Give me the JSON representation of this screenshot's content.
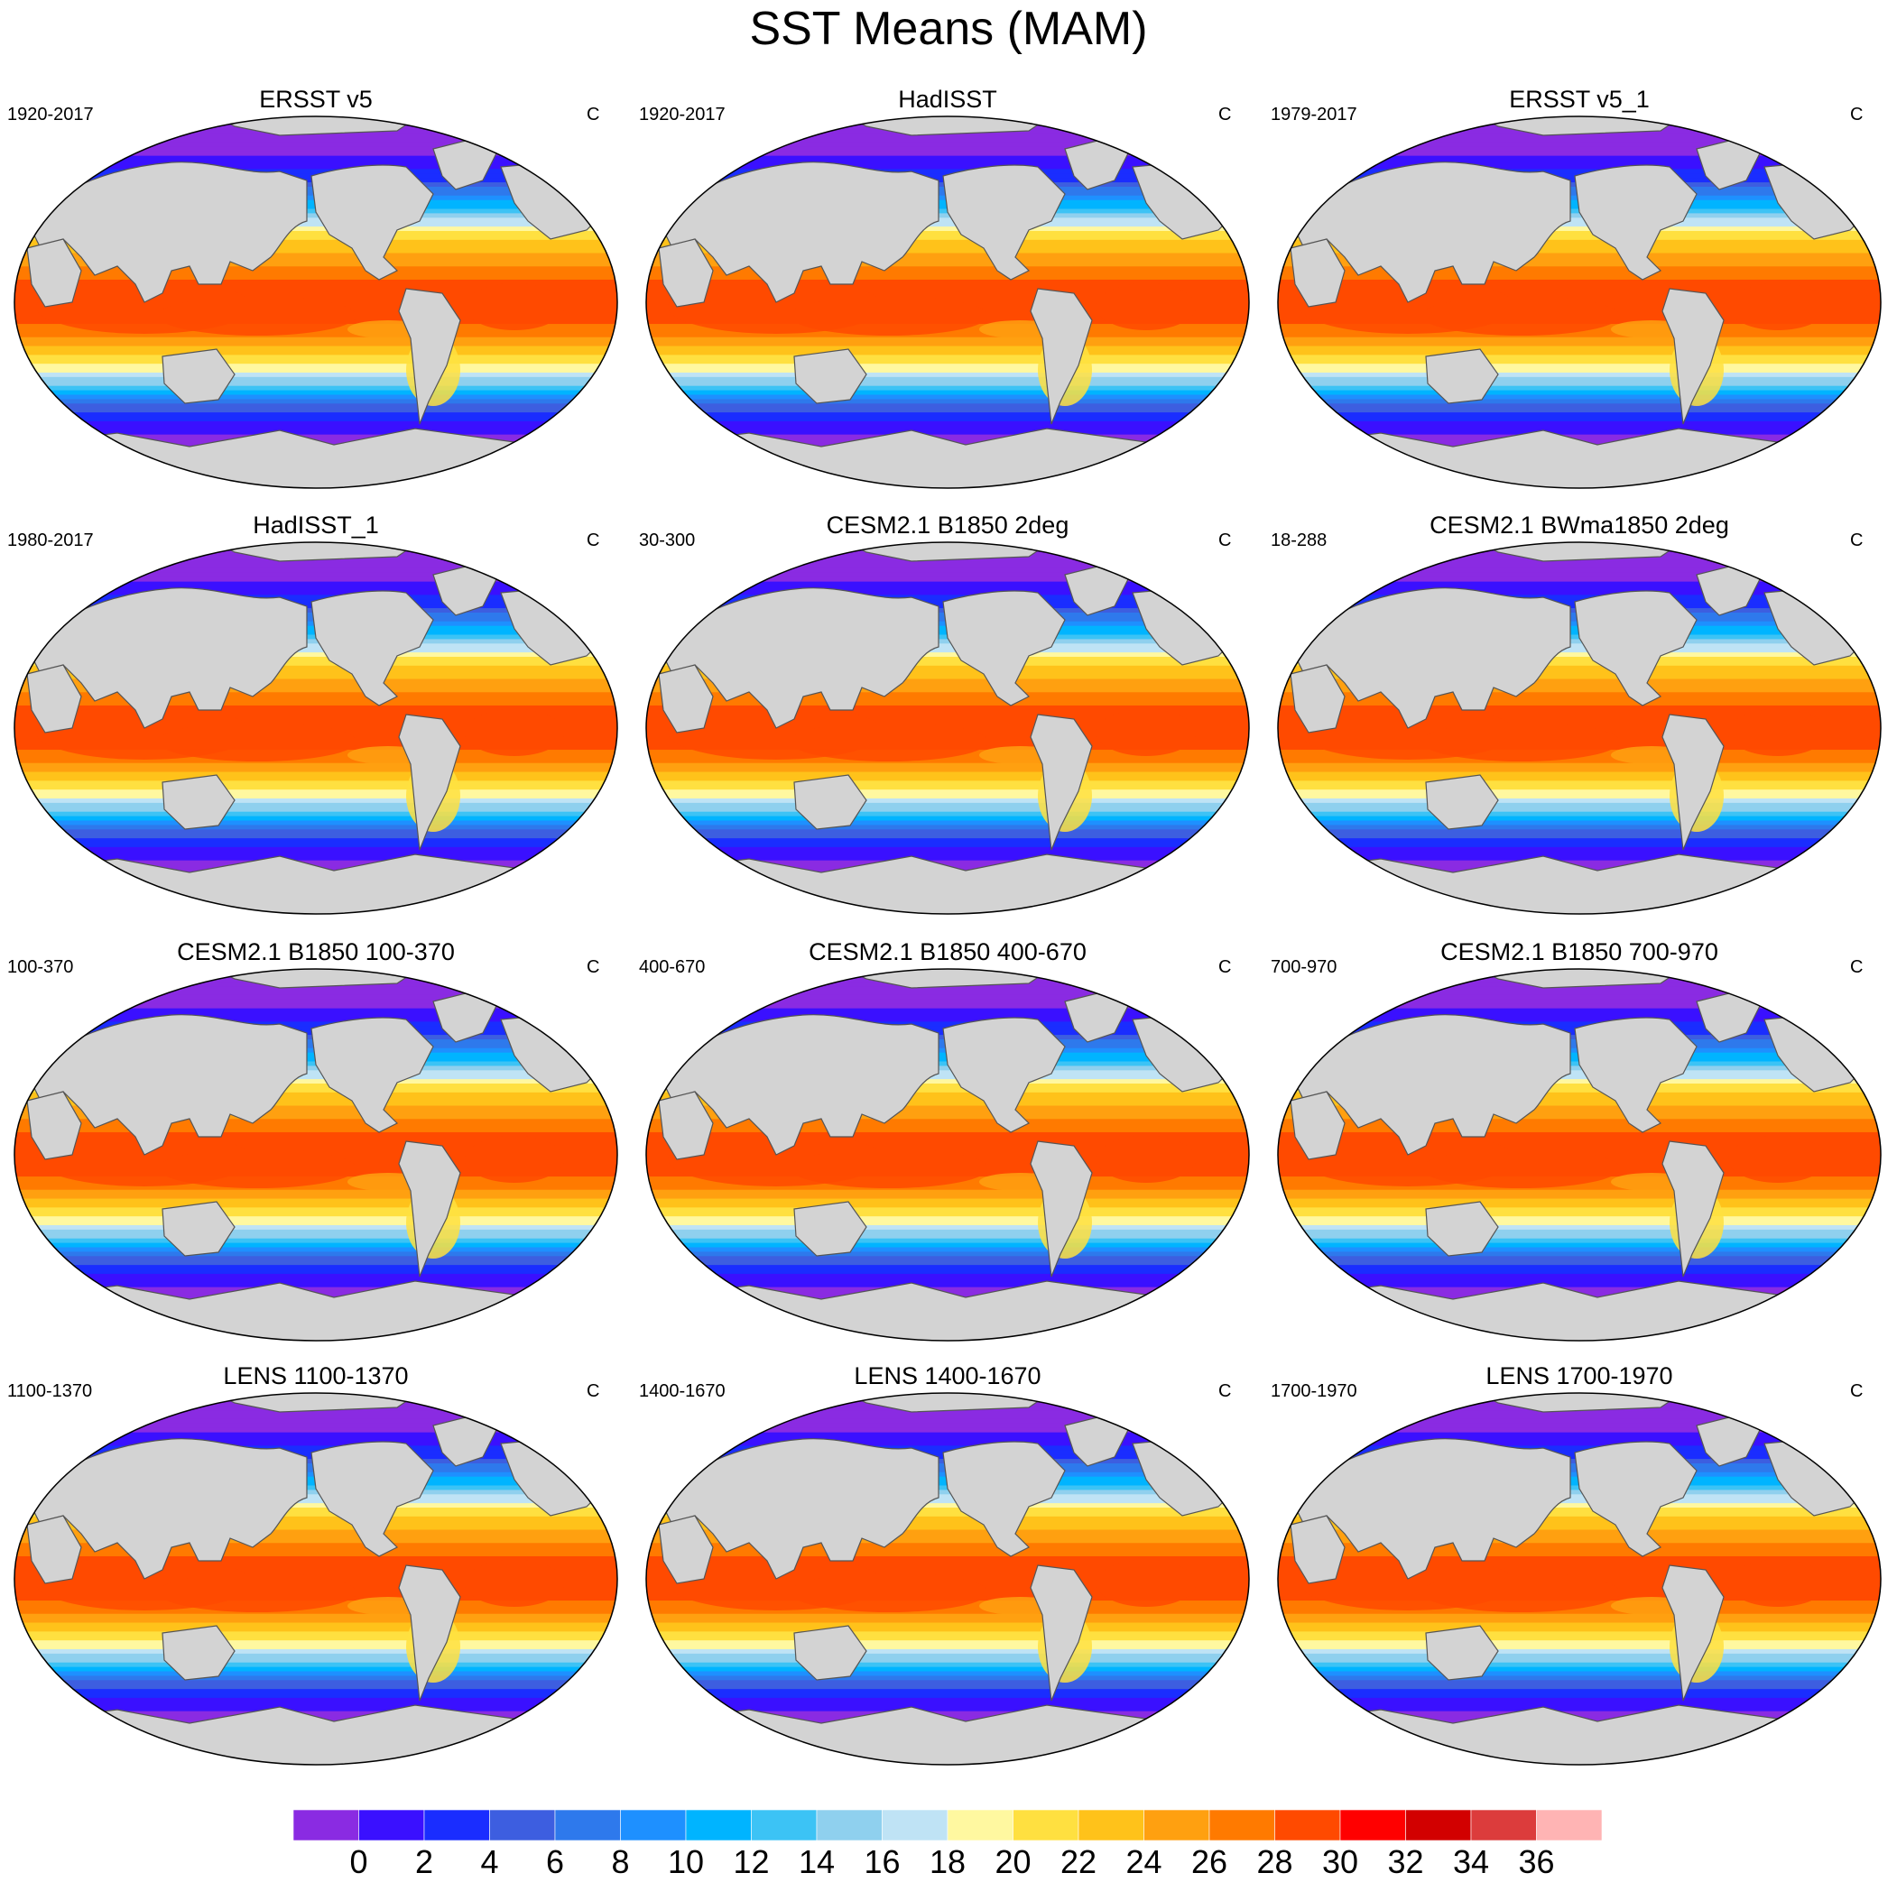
{
  "figure": {
    "title": "SST Means (MAM)"
  },
  "panels": [
    {
      "title": "ERSST v5",
      "left_label": "1920-2017",
      "right_label": "C"
    },
    {
      "title": "HadISST",
      "left_label": "1920-2017",
      "right_label": "C"
    },
    {
      "title": "ERSST v5_1",
      "left_label": "1979-2017",
      "right_label": "C"
    },
    {
      "title": "HadISST_1",
      "left_label": "1980-2017",
      "right_label": "C"
    },
    {
      "title": "CESM2.1 B1850 2deg",
      "left_label": "30-300",
      "right_label": "C"
    },
    {
      "title": "CESM2.1 BWma1850 2deg",
      "left_label": "18-288",
      "right_label": "C"
    },
    {
      "title": "CESM2.1 B1850 100-370",
      "left_label": "100-370",
      "right_label": "C"
    },
    {
      "title": "CESM2.1 B1850 400-670",
      "left_label": "400-670",
      "right_label": "C"
    },
    {
      "title": "CESM2.1 B1850 700-970",
      "left_label": "700-970",
      "right_label": "C"
    },
    {
      "title": "LENS 1100-1370",
      "left_label": "1100-1370",
      "right_label": "C"
    },
    {
      "title": "LENS 1400-1670",
      "left_label": "1400-1670",
      "right_label": "C"
    },
    {
      "title": "LENS 1700-1970",
      "left_label": "1700-1970",
      "right_label": "C"
    }
  ],
  "colorbar": {
    "unit": "C",
    "tick_labels": [
      "0",
      "2",
      "4",
      "6",
      "8",
      "10",
      "12",
      "14",
      "16",
      "18",
      "20",
      "22",
      "24",
      "26",
      "28",
      "30",
      "32",
      "34",
      "36"
    ],
    "colors": [
      "#8a2be2",
      "#3a10ff",
      "#1a2dff",
      "#3d5ee0",
      "#2e79ec",
      "#1e90ff",
      "#00b4ff",
      "#3cc3f5",
      "#8fd0ee",
      "#bfe3f5",
      "#fff8a0",
      "#ffe040",
      "#ffc21a",
      "#ffa010",
      "#ff7a00",
      "#ff4a00",
      "#ff0000",
      "#d20000",
      "#dc3c3c",
      "#ffb4b4"
    ]
  },
  "map_style": {
    "land_color": "#d3d3d3",
    "coast_color": "#555555",
    "outline_color": "#000000"
  },
  "map_data": {
    "projection": "Winkel Tripel / robinson-style global",
    "zonal_sst_profile_C": [
      {
        "lat": 90,
        "sst": -1
      },
      {
        "lat": 70,
        "sst": 0
      },
      {
        "lat": 60,
        "sst": 3
      },
      {
        "lat": 50,
        "sst": 9
      },
      {
        "lat": 40,
        "sst": 16
      },
      {
        "lat": 30,
        "sst": 22
      },
      {
        "lat": 20,
        "sst": 25
      },
      {
        "lat": 10,
        "sst": 28
      },
      {
        "lat": 0,
        "sst": 28.5
      },
      {
        "lat": -10,
        "sst": 28
      },
      {
        "lat": -20,
        "sst": 25
      },
      {
        "lat": -30,
        "sst": 20
      },
      {
        "lat": -40,
        "sst": 14
      },
      {
        "lat": -50,
        "sst": 6
      },
      {
        "lat": -55,
        "sst": 3
      },
      {
        "lat": -60,
        "sst": 1
      },
      {
        "lat": -70,
        "sst": -1
      },
      {
        "lat": -90,
        "sst": -1
      }
    ]
  }
}
